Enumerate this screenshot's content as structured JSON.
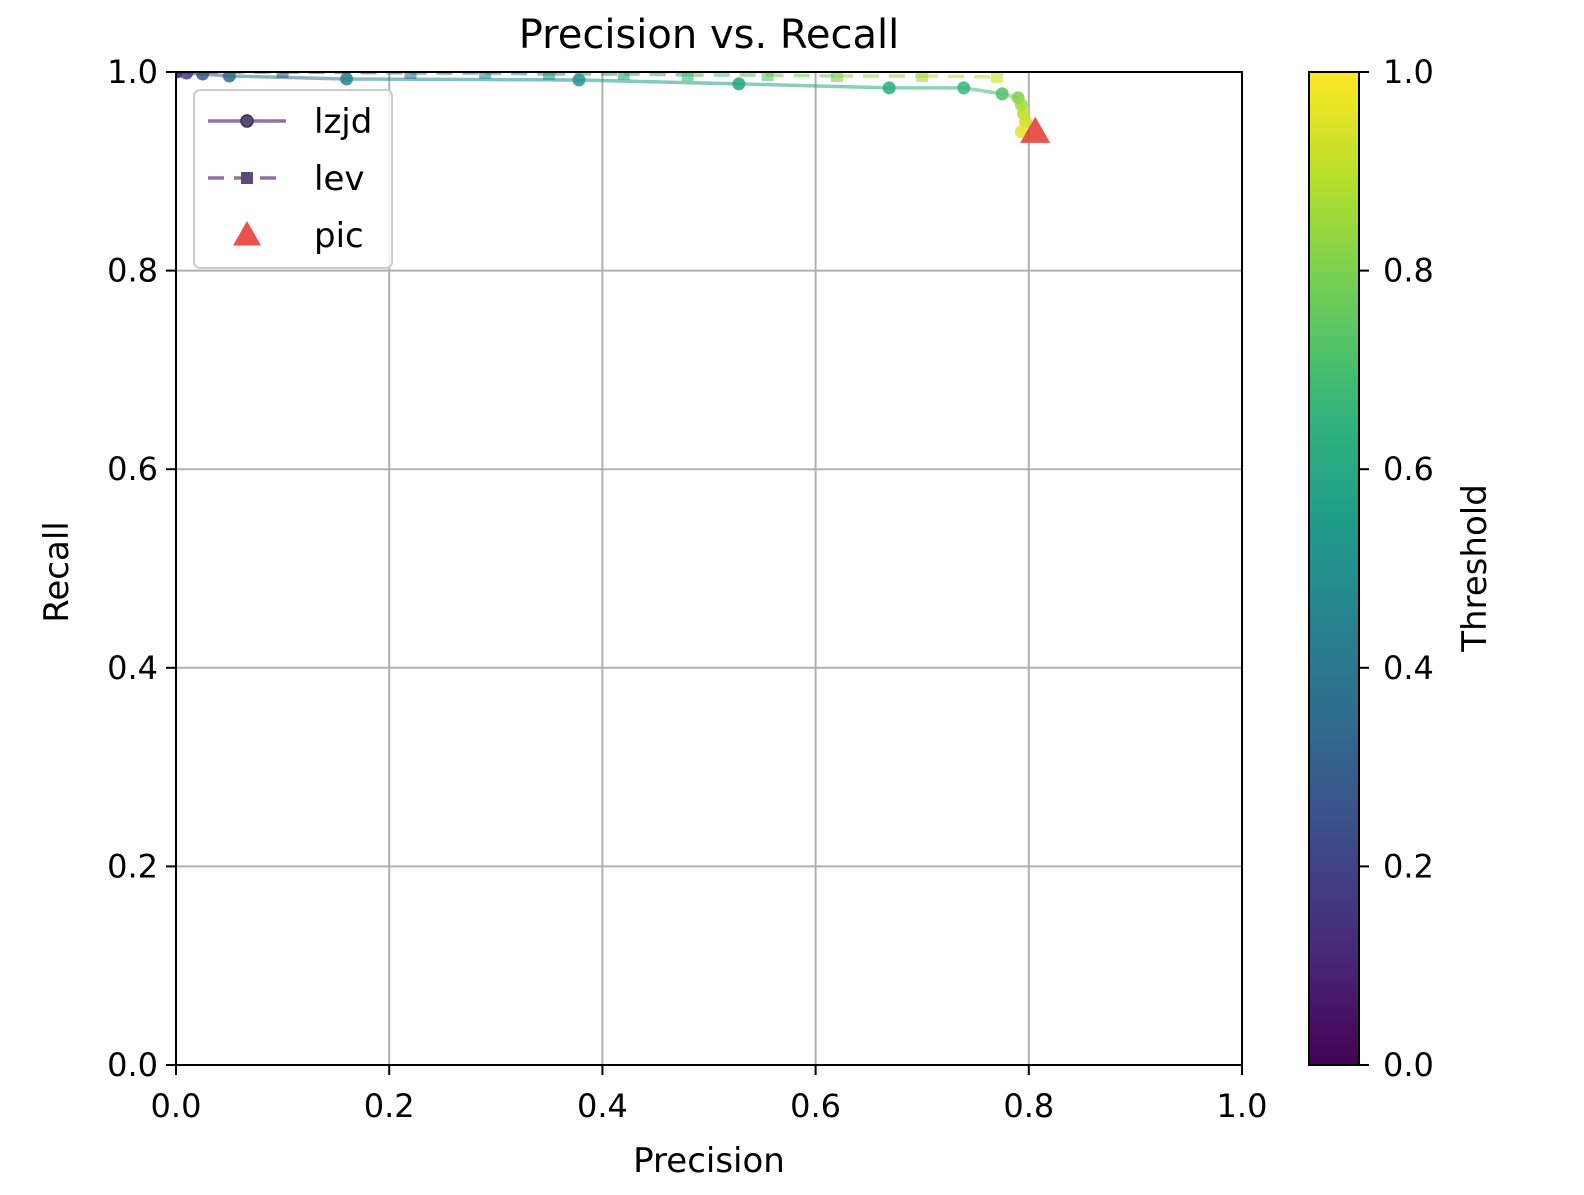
{
  "chart_data": {
    "type": "line",
    "title": "Precision vs. Recall",
    "xlabel": "Precision",
    "ylabel": "Recall",
    "xlim": [
      0.0,
      1.0
    ],
    "ylim": [
      0.0,
      1.0
    ],
    "xticks": [
      "0.0",
      "0.2",
      "0.4",
      "0.6",
      "0.8",
      "1.0"
    ],
    "yticks": [
      "0.0",
      "0.2",
      "0.4",
      "0.6",
      "0.8",
      "1.0"
    ],
    "grid": true,
    "legend_position": "upper-left",
    "colorbar": {
      "label": "Threshold",
      "range": [
        0.0,
        1.0
      ],
      "ticks": [
        "0.0",
        "0.2",
        "0.4",
        "0.6",
        "0.8",
        "1.0"
      ],
      "colormap": "viridis"
    },
    "series": [
      {
        "name": "lzjd",
        "line_style": "solid",
        "marker": "circle",
        "color": "#7b5a90",
        "points": [
          {
            "x": 0.0,
            "y": 1.0,
            "t": 0.12
          },
          {
            "x": 0.01,
            "y": 0.999,
            "t": 0.2
          },
          {
            "x": 0.025,
            "y": 0.998,
            "t": 0.27
          },
          {
            "x": 0.05,
            "y": 0.996,
            "t": 0.35
          },
          {
            "x": 0.16,
            "y": 0.993,
            "t": 0.44
          },
          {
            "x": 0.378,
            "y": 0.992,
            "t": 0.52
          },
          {
            "x": 0.528,
            "y": 0.988,
            "t": 0.58
          },
          {
            "x": 0.669,
            "y": 0.984,
            "t": 0.62
          },
          {
            "x": 0.739,
            "y": 0.984,
            "t": 0.66
          },
          {
            "x": 0.775,
            "y": 0.978,
            "t": 0.72
          },
          {
            "x": 0.79,
            "y": 0.974,
            "t": 0.8
          },
          {
            "x": 0.793,
            "y": 0.967,
            "t": 0.86
          },
          {
            "x": 0.795,
            "y": 0.958,
            "t": 0.9
          },
          {
            "x": 0.797,
            "y": 0.95,
            "t": 0.93
          },
          {
            "x": 0.793,
            "y": 0.94,
            "t": 0.96
          }
        ]
      },
      {
        "name": "lev",
        "line_style": "dashed",
        "marker": "square",
        "color": "#7b5a90",
        "points": [
          {
            "x": 0.0,
            "y": 1.0,
            "t": 0.15
          },
          {
            "x": 0.1,
            "y": 1.0,
            "t": 0.3
          },
          {
            "x": 0.22,
            "y": 0.999,
            "t": 0.42
          },
          {
            "x": 0.29,
            "y": 0.999,
            "t": 0.48
          },
          {
            "x": 0.35,
            "y": 0.998,
            "t": 0.54
          },
          {
            "x": 0.42,
            "y": 0.998,
            "t": 0.6
          },
          {
            "x": 0.48,
            "y": 0.997,
            "t": 0.68
          },
          {
            "x": 0.555,
            "y": 0.997,
            "t": 0.74
          },
          {
            "x": 0.62,
            "y": 0.996,
            "t": 0.8
          },
          {
            "x": 0.7,
            "y": 0.996,
            "t": 0.86
          },
          {
            "x": 0.77,
            "y": 0.995,
            "t": 0.92
          }
        ]
      },
      {
        "name": "pic",
        "line_style": "none",
        "marker": "triangle",
        "color": "#e8403a",
        "points": [
          {
            "x": 0.806,
            "y": 0.94
          }
        ]
      }
    ]
  }
}
